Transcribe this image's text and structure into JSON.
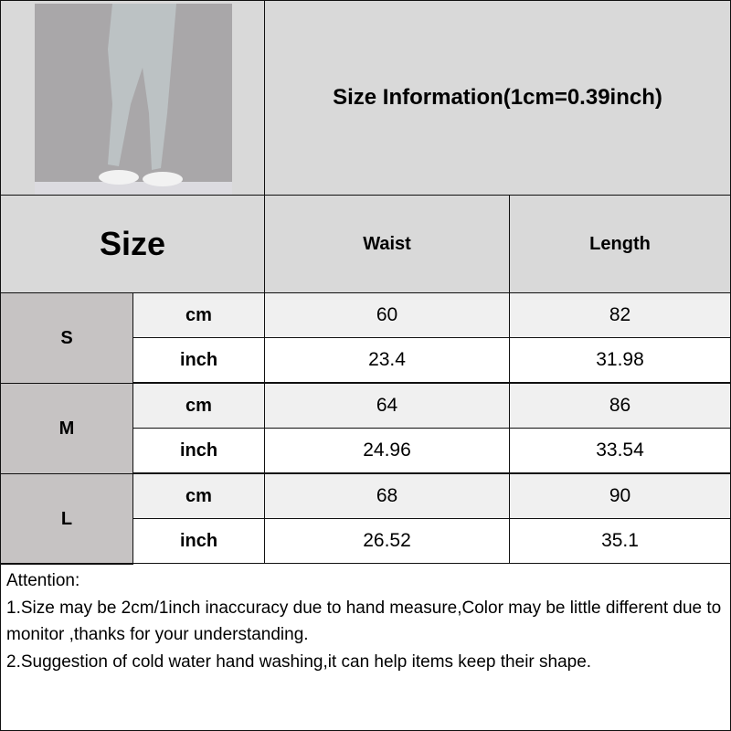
{
  "title": "Size Information(1cm=0.39inch)",
  "header": {
    "size": "Size",
    "waist": "Waist",
    "length": "Length"
  },
  "rows": [
    {
      "size": "S",
      "cm": {
        "unit": "cm",
        "waist": "60",
        "length": "82"
      },
      "inch": {
        "unit": "inch",
        "waist": "23.4",
        "length": "31.98"
      }
    },
    {
      "size": "M",
      "cm": {
        "unit": "cm",
        "waist": "64",
        "length": "86"
      },
      "inch": {
        "unit": "inch",
        "waist": "24.96",
        "length": "33.54"
      }
    },
    {
      "size": "L",
      "cm": {
        "unit": "cm",
        "waist": "68",
        "length": "90"
      },
      "inch": {
        "unit": "inch",
        "waist": "26.52",
        "length": "35.1"
      }
    }
  ],
  "attention": {
    "heading": "Attention:",
    "line1": "1.Size may be 2cm/1inch inaccuracy due to hand measure,Color may be little different due to monitor ,thanks for your understanding.",
    "line2": "2.Suggestion of cold water hand washing,it can help items keep their shape."
  },
  "colors": {
    "header_bg": "#d9d9d9",
    "size_bg": "#c6c3c3",
    "cm_row_bg": "#f0f0f0",
    "inch_row_bg": "#ffffff"
  },
  "product_image": "gray-leggings-photo"
}
